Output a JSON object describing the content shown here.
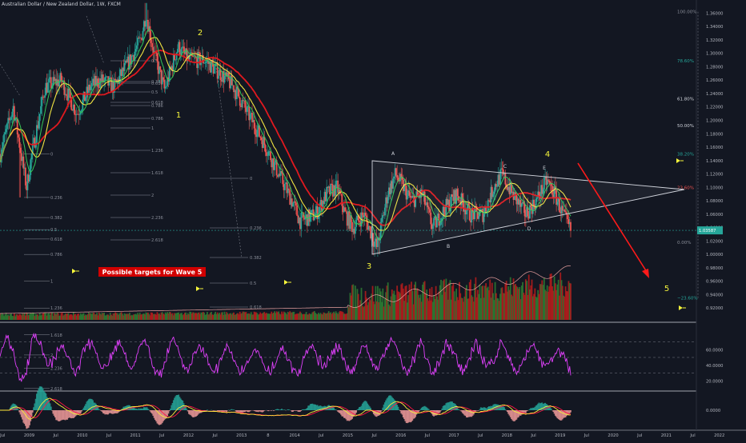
{
  "header": {
    "title": "Australian Dollar / New Zealand Dollar, 1W, FXCM"
  },
  "colors": {
    "background": "#131722",
    "up_candle": "#26a69a",
    "down_candle": "#ef5350",
    "ma_red": "#e0191f",
    "ma_yellow": "#f0e442",
    "ma_green": "#34c759",
    "rsi": "#e040fb",
    "volume_up": "#2e7d32",
    "volume_down": "#b71c1c",
    "target_arrow": "#ff1a1a",
    "label_yellow": "#f5f53b",
    "fib_text": "#8a8e99",
    "annotation_bg": "#d10000"
  },
  "chart_data": [
    {
      "type": "candlestick",
      "title": "Australian Dollar / New Zealand Dollar, 1W, FXCM",
      "x_ticks": [
        "Jul",
        "2009",
        "Jul",
        "2010",
        "Jul",
        "2011",
        "Jul",
        "2012",
        "Jul",
        "2013",
        "8",
        "2014",
        "Jul",
        "2015",
        "Jul",
        "2016",
        "Jul",
        "2017",
        "Jul",
        "2018",
        "Jul",
        "2019",
        "Jul",
        "2020",
        "Jul",
        "2021",
        "Jul",
        "2022"
      ],
      "y_ticks": [
        "1.36000",
        "1.34000",
        "1.32000",
        "1.30000",
        "1.28000",
        "1.26000",
        "1.24000",
        "1.22000",
        "1.20000",
        "1.18000",
        "1.16000",
        "1.14000",
        "1.12000",
        "1.10000",
        "1.08000",
        "1.06000",
        "1.04000",
        "1.02000",
        "1.00000",
        "0.98000",
        "0.96000",
        "0.94000",
        "0.92000",
        "0.90000"
      ],
      "ylim": [
        0.9,
        1.37
      ],
      "last_price": "1.03587",
      "series": [
        {
          "name": "AUDNZD",
          "kind": "price"
        },
        {
          "name": "",
          "kind": "moving_average"
        },
        {
          "name": "",
          "kind": "moving_average"
        },
        {
          "name": "",
          "kind": "moving_average"
        }
      ],
      "key_levels": [
        {
          "label": "2",
          "x": "2011-03",
          "y": 1.37
        },
        {
          "label": "3",
          "x": "2015-08",
          "y": 1.0
        },
        {
          "label": "4",
          "x": "2018-08",
          "y": 1.115
        },
        {
          "label": "5",
          "x": "2020-06",
          "y": 0.95
        },
        {
          "label": "1",
          "x": "2011-06",
          "y": 1.21
        }
      ],
      "fib_right_labels": [
        {
          "text": "100.00%",
          "y": 1.362
        },
        {
          "text": "78.60%",
          "y": 1.289
        },
        {
          "text": "61.80%",
          "y": 1.232
        },
        {
          "text": "50.00%",
          "y": 1.192
        },
        {
          "text": "38.20%",
          "y": 1.15
        },
        {
          "text": "23.60%",
          "y": 1.1
        },
        {
          "text": "0.00%",
          "y": 1.018
        },
        {
          "text": "−23.60%",
          "y": 0.935
        }
      ],
      "fib_left_labels": [
        "0",
        "0.236",
        "0.382",
        "0.5",
        "0.618",
        "0.786",
        "1",
        "1.236",
        "1.618",
        "2",
        "2.236",
        "2.618"
      ],
      "fib_mid_labels": [
        "0.5",
        "0.618",
        "0.786",
        "1",
        "1.236",
        "1.618",
        "2",
        "2.236",
        "2.618"
      ],
      "fib_ext_labels": [
        "0",
        "0.236",
        "0.382",
        "0.5",
        "0.618"
      ],
      "triangle_labels": [
        "A",
        "B",
        "C",
        "D",
        "E"
      ],
      "annotation": "Possible targets for Wave 5"
    },
    {
      "type": "line",
      "name": "RSI",
      "y_ticks": [
        "60.0000",
        "40.0000",
        "20.0000"
      ],
      "ylim": [
        10,
        90
      ],
      "levels": [
        70,
        50,
        30
      ]
    },
    {
      "type": "line",
      "name": "MACD",
      "y_ticks": [
        "0.0000"
      ],
      "ylim": [
        -1,
        1
      ]
    }
  ]
}
